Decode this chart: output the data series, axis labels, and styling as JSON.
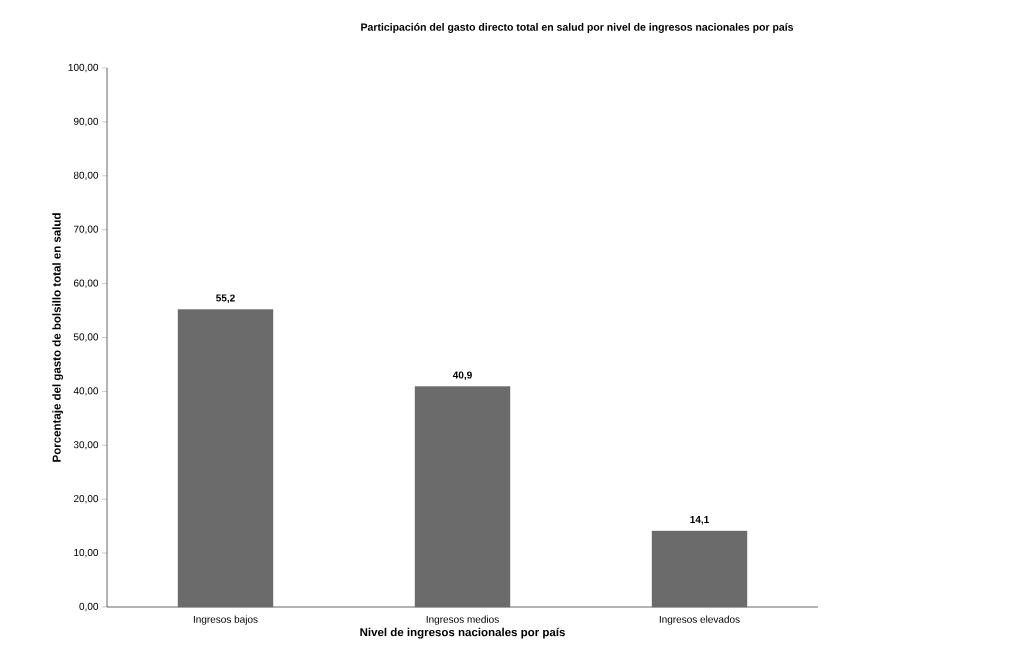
{
  "chart_data": {
    "type": "bar",
    "title": "Participación del gasto directo total en salud por nivel de ingresos nacionales por país",
    "xlabel": "Nivel de ingresos nacionales por país",
    "ylabel": "Porcentaje del gasto de bolsillo total en salud",
    "categories": [
      "Ingresos bajos",
      "Ingresos medios",
      "Ingresos elevados"
    ],
    "values": [
      55.2,
      40.9,
      14.1
    ],
    "value_labels": [
      "55,2",
      "40,9",
      "14,1"
    ],
    "color": "#6b6b6b",
    "ylim": [
      0,
      100
    ],
    "yticks": [
      {
        "value": 0,
        "label": "0,00"
      },
      {
        "value": 10,
        "label": "10,00"
      },
      {
        "value": 20,
        "label": "20,00"
      },
      {
        "value": 30,
        "label": "30,00"
      },
      {
        "value": 40,
        "label": "40,00"
      },
      {
        "value": 50,
        "label": "50,00"
      },
      {
        "value": 60,
        "label": "60,00"
      },
      {
        "value": 70,
        "label": "70,00"
      },
      {
        "value": 80,
        "label": "80,00"
      },
      {
        "value": 90,
        "label": "90,00"
      },
      {
        "value": 100,
        "label": "100,00"
      }
    ],
    "grid": false
  }
}
